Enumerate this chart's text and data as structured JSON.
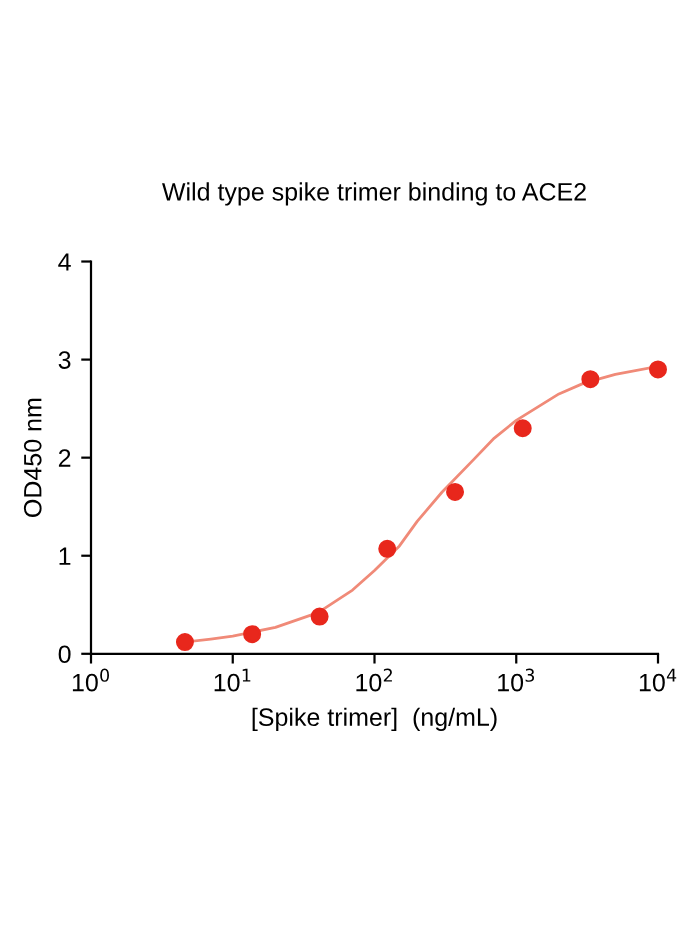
{
  "chart_data": {
    "type": "scatter",
    "title": "Wild type spike trimer binding to ACE2",
    "xlabel": "[Spike trimer]  (ng/mL)",
    "ylabel": "OD450 nm",
    "log": "x",
    "xlim": [
      1,
      10000
    ],
    "xticks": [
      {
        "value": 1,
        "label": "10$^{0}$"
      },
      {
        "value": 10,
        "label": "10$^{1}$"
      },
      {
        "value": 100,
        "label": "10$^{2}$"
      },
      {
        "value": 1000,
        "label": "10$^{3}$"
      },
      {
        "value": 10000,
        "label": "10$^{4}$"
      }
    ],
    "ylim": [
      0,
      4
    ],
    "yticks": [
      0,
      1,
      2,
      3,
      4
    ],
    "grid": false,
    "series": [
      {
        "type": "line",
        "color": "#f08a78",
        "marker": "none",
        "line_style": "solid",
        "x": [
          4.6,
          7,
          10,
          20,
          40,
          70,
          100,
          150,
          200,
          300,
          500,
          700,
          1000,
          2000,
          3000,
          5000,
          10000
        ],
        "values": [
          0.12,
          0.15,
          0.18,
          0.27,
          0.42,
          0.65,
          0.85,
          1.1,
          1.35,
          1.65,
          1.98,
          2.2,
          2.38,
          2.65,
          2.76,
          2.85,
          2.93
        ]
      },
      {
        "color": "#e8271c",
        "marker": "circle",
        "x": [
          4.6,
          13.7,
          41,
          123,
          370,
          1111,
          3333,
          10000
        ],
        "values": [
          0.12,
          0.2,
          0.38,
          1.07,
          1.65,
          2.3,
          2.8,
          2.9
        ]
      }
    ]
  }
}
